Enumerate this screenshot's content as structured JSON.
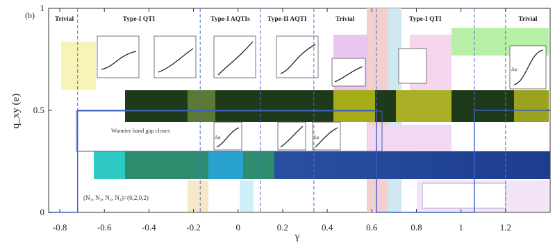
{
  "chart_data": {
    "type": "line",
    "panel_label": "(b)",
    "xlabel": "γ",
    "ylabel": "q_xy (e)",
    "xlim": [
      -0.85,
      1.4
    ],
    "ylim": [
      0,
      1
    ],
    "x_ticks": [
      -0.8,
      -0.6,
      -0.4,
      -0.2,
      0,
      0.2,
      0.4,
      0.6,
      0.8,
      1,
      1.2
    ],
    "x_tick_labels": [
      "-0.8",
      "-0.6",
      "-0.4",
      "-0.2",
      "0",
      "0.2",
      "0.4",
      "0.6",
      "0.8",
      "1",
      "1.2"
    ],
    "y_ticks": [
      0,
      0.5,
      1
    ],
    "y_tick_labels": [
      "0",
      "0.5",
      "1"
    ],
    "phase_boundaries": [
      -0.72,
      -0.17,
      0.1,
      0.34,
      0.62,
      1.06,
      1.2
    ],
    "phases": [
      {
        "label": "Trivial",
        "x_center": -0.78
      },
      {
        "label": "Type-I QTI",
        "x_center": -0.445
      },
      {
        "label": "Type-I AQTIs",
        "x_center": -0.035
      },
      {
        "label": "Type-II AQTI",
        "x_center": 0.22
      },
      {
        "label": "Trivial",
        "x_center": 0.48
      },
      {
        "label": "Type-I QTI",
        "x_center": 0.84
      },
      {
        "label": "Trivial",
        "x_center": 1.3
      }
    ],
    "annotations": [
      {
        "id": "wannier",
        "text": "Wannier band gap closes"
      },
      {
        "id": "numbers",
        "text": "(N₁, N₂, N₃, N₄)=(0,2,0,2)"
      }
    ],
    "series": [
      {
        "x": [
          -0.85,
          -0.72,
          -0.72,
          0.62,
          0.62,
          1.06,
          1.06,
          1.4
        ],
        "y": [
          0,
          0,
          0.5,
          0.5,
          0,
          0,
          0.5,
          0.5
        ]
      }
    ],
    "inset_label": "Δφ",
    "grid": false,
    "legend": "none"
  }
}
